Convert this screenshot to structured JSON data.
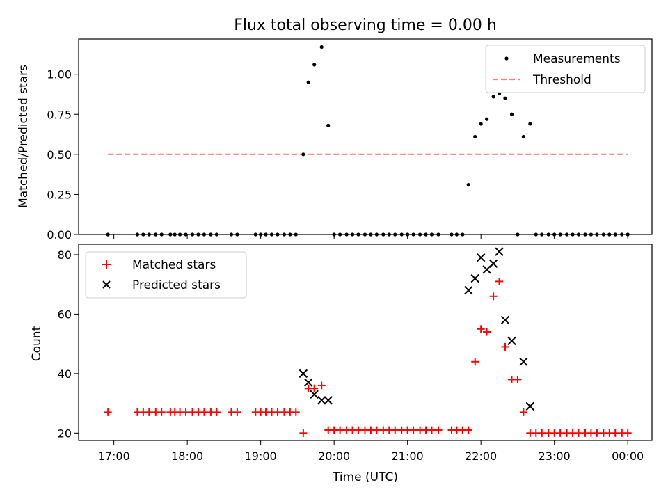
{
  "chart_data": [
    {
      "type": "scatter",
      "title": "Flux total observing time = 0.00 h",
      "xlabel": "",
      "ylabel": "Matched/Predicted stars",
      "ylim": [
        0,
        1.22
      ],
      "yticks": [
        0.0,
        0.25,
        0.5,
        0.75,
        1.0
      ],
      "ytick_labels": [
        "0.00",
        "0.25",
        "0.50",
        "0.75",
        "1.00"
      ],
      "legend_position": "top-right",
      "series": [
        {
          "name": "Measurements",
          "marker": "dot",
          "color": "#000000",
          "x": [
            16.92,
            17.32,
            17.4,
            17.48,
            17.57,
            17.65,
            17.77,
            17.83,
            17.9,
            17.98,
            18.07,
            18.15,
            18.23,
            18.32,
            18.4,
            18.6,
            18.68,
            18.93,
            19.0,
            19.07,
            19.15,
            19.23,
            19.32,
            19.4,
            19.48,
            19.58,
            19.65,
            19.73,
            19.83,
            19.92,
            20.0,
            20.08,
            20.17,
            20.25,
            20.33,
            20.42,
            20.5,
            20.58,
            20.67,
            20.75,
            20.83,
            20.92,
            21.0,
            21.08,
            21.17,
            21.25,
            21.33,
            21.42,
            21.6,
            21.67,
            21.75,
            21.83,
            21.92,
            22.0,
            22.08,
            22.17,
            22.25,
            22.33,
            22.42,
            22.5,
            22.58,
            22.67,
            22.75,
            22.83,
            22.92,
            23.0,
            23.08,
            23.17,
            23.25,
            23.33,
            23.42,
            23.5,
            23.58,
            23.67,
            23.75,
            23.83,
            23.92,
            24.0
          ],
          "y": [
            0,
            0,
            0,
            0,
            0,
            0,
            0,
            0,
            0,
            0,
            0,
            0,
            0,
            0,
            0,
            0,
            0,
            0,
            0,
            0,
            0,
            0,
            0,
            0,
            0,
            0.5,
            0.95,
            1.06,
            1.17,
            0.68,
            0,
            0,
            0,
            0,
            0,
            0,
            0,
            0,
            0,
            0,
            0,
            0,
            0,
            0,
            0,
            0,
            0,
            0,
            0,
            0,
            0,
            0.31,
            0.61,
            0.69,
            0.72,
            0.86,
            0.88,
            0.85,
            0.75,
            0,
            0.61,
            0.69,
            0,
            0,
            0,
            0,
            0,
            0,
            0,
            0,
            0,
            0,
            0,
            0,
            0,
            0,
            0,
            0
          ]
        },
        {
          "name": "Threshold",
          "marker": "dashed-line",
          "color": "#ff7f7f",
          "x": [
            16.92,
            24.0
          ],
          "y": [
            0.5,
            0.5
          ]
        }
      ]
    },
    {
      "type": "scatter",
      "title": "",
      "xlabel": "Time (UTC)",
      "ylabel": "Count",
      "xlim": [
        16.52,
        24.33
      ],
      "ylim": [
        17.5,
        83.5
      ],
      "yticks": [
        20,
        40,
        60,
        80
      ],
      "ytick_labels": [
        "20",
        "40",
        "60",
        "80"
      ],
      "xticks": [
        17,
        18,
        19,
        20,
        21,
        22,
        23,
        24
      ],
      "xtick_labels": [
        "17:00",
        "18:00",
        "19:00",
        "20:00",
        "21:00",
        "22:00",
        "23:00",
        "00:00"
      ],
      "legend_position": "top-left",
      "series": [
        {
          "name": "Matched stars",
          "marker": "plus",
          "color": "#ff0000",
          "x": [
            16.92,
            17.32,
            17.4,
            17.48,
            17.57,
            17.65,
            17.77,
            17.83,
            17.9,
            17.98,
            18.07,
            18.15,
            18.23,
            18.32,
            18.4,
            18.6,
            18.68,
            18.93,
            19.0,
            19.07,
            19.15,
            19.23,
            19.32,
            19.4,
            19.48,
            19.58,
            19.65,
            19.73,
            19.83,
            19.92,
            20.0,
            20.08,
            20.17,
            20.25,
            20.33,
            20.42,
            20.5,
            20.58,
            20.67,
            20.75,
            20.83,
            20.92,
            21.0,
            21.08,
            21.17,
            21.25,
            21.33,
            21.42,
            21.6,
            21.67,
            21.75,
            21.83,
            21.92,
            22.0,
            22.08,
            22.17,
            22.25,
            22.33,
            22.42,
            22.5,
            22.58,
            22.67,
            22.75,
            22.83,
            22.92,
            23.0,
            23.08,
            23.17,
            23.25,
            23.33,
            23.42,
            23.5,
            23.58,
            23.67,
            23.75,
            23.83,
            23.92,
            24.0
          ],
          "y": [
            27,
            27,
            27,
            27,
            27,
            27,
            27,
            27,
            27,
            27,
            27,
            27,
            27,
            27,
            27,
            27,
            27,
            27,
            27,
            27,
            27,
            27,
            27,
            27,
            27,
            20,
            35,
            35,
            36,
            21,
            21,
            21,
            21,
            21,
            21,
            21,
            21,
            21,
            21,
            21,
            21,
            21,
            21,
            21,
            21,
            21,
            21,
            21,
            21,
            21,
            21,
            21,
            44,
            55,
            54,
            66,
            71,
            49,
            38,
            38,
            27,
            20,
            20,
            20,
            20,
            20,
            20,
            20,
            20,
            20,
            20,
            20,
            20,
            20,
            20,
            20,
            20,
            20
          ]
        },
        {
          "name": "Predicted stars",
          "marker": "x",
          "color": "#000000",
          "x": [
            19.58,
            19.65,
            19.73,
            19.83,
            19.92,
            21.83,
            21.92,
            22.0,
            22.08,
            22.17,
            22.25,
            22.33,
            22.42,
            22.58,
            22.67
          ],
          "y": [
            40,
            37,
            33,
            31,
            31,
            68,
            72,
            79,
            75,
            77,
            81,
            58,
            51,
            44,
            29
          ]
        }
      ]
    }
  ]
}
